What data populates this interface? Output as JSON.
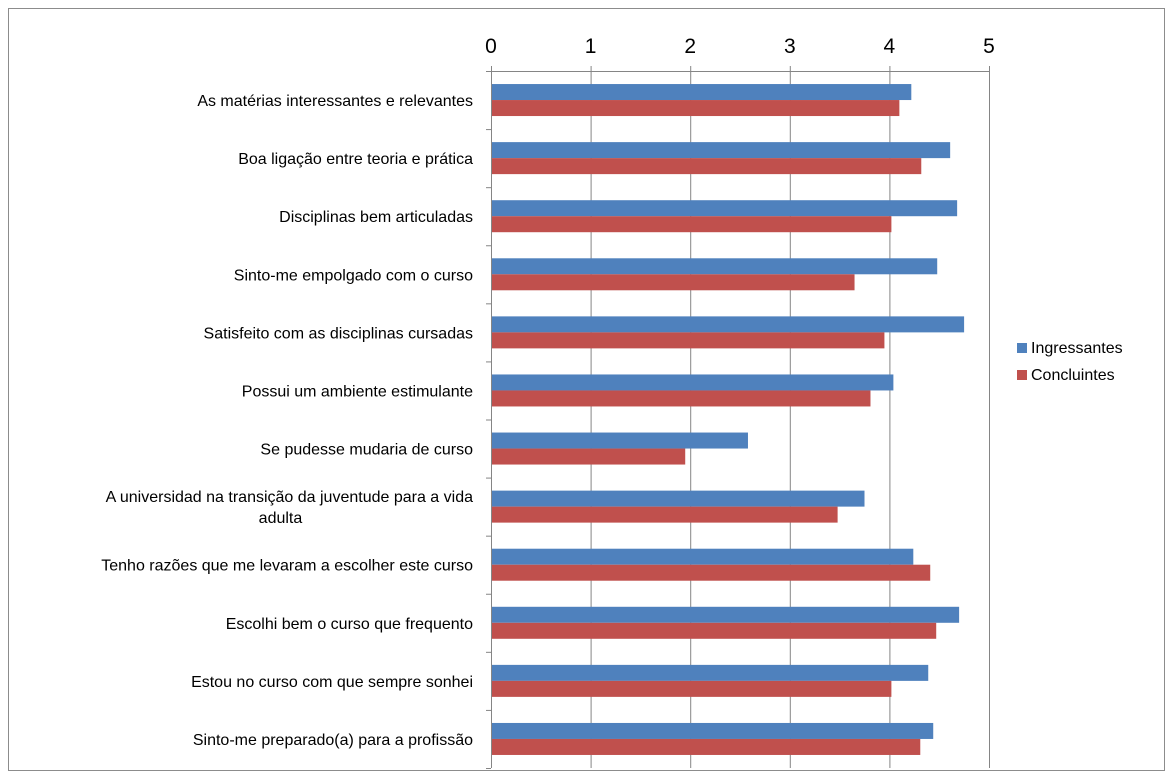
{
  "chart_data": {
    "type": "bar",
    "orientation": "horizontal",
    "categories": [
      "As matérias interessantes e relevantes",
      "Boa ligação entre teoria e prática",
      "Disciplinas bem articuladas",
      "Sinto-me empolgado com o curso",
      "Satisfeito com as disciplinas cursadas",
      "Possui um ambiente estimulante",
      "Se pudesse mudaria de curso",
      "A universidad na transição da juventude para a vida adulta",
      "Tenho razões que me levaram a escolher este curso",
      "Escolhi bem o curso que frequento",
      "Estou no curso com que sempre sonhei",
      "Sinto-me preparado(a) para a profissão"
    ],
    "series": [
      {
        "name": "Ingressantes",
        "color": "#4f81bd",
        "values": [
          4.22,
          4.61,
          4.68,
          4.48,
          4.75,
          4.04,
          2.58,
          3.75,
          4.24,
          4.7,
          4.39,
          4.44
        ]
      },
      {
        "name": "Concluintes",
        "color": "#c0504d",
        "values": [
          4.1,
          4.32,
          4.02,
          3.65,
          3.95,
          3.81,
          1.95,
          3.48,
          4.41,
          4.47,
          4.02,
          4.31
        ]
      }
    ],
    "xlim": [
      0,
      5
    ],
    "xticks": [
      0,
      1,
      2,
      3,
      4,
      5
    ],
    "x_axis_position": "top",
    "grid": true,
    "legend_position": "right",
    "title": "",
    "xlabel": "",
    "ylabel": ""
  }
}
